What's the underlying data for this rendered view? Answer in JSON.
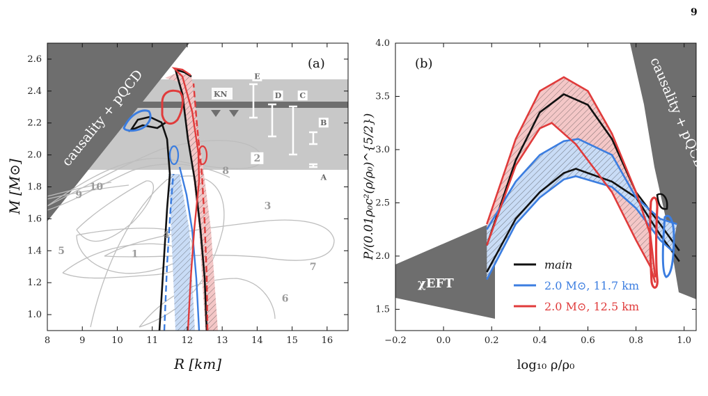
{
  "page": {
    "page_number": "9"
  },
  "chart_data": [
    {
      "type": "line",
      "panel_label": "(a)",
      "xlabel": "R [km]",
      "ylabel": "M [M⊙]",
      "xlim": [
        8,
        16.6
      ],
      "ylim": [
        0.9,
        2.7
      ],
      "xticks": [
        "8",
        "9",
        "10",
        "11",
        "12",
        "13",
        "14",
        "15",
        "16"
      ],
      "yticks": [
        "1.0",
        "1.2",
        "1.4",
        "1.6",
        "1.8",
        "2.0",
        "2.2",
        "2.4",
        "2.6"
      ],
      "shaded_region_label": "causality + pQCD",
      "mass_band": [
        1.91,
        2.47
      ],
      "kn_label": "KN",
      "kn_line_mass": 2.32,
      "measurement_labels": [
        "A",
        "B",
        "C",
        "D",
        "E"
      ],
      "measurement_bars": [
        {
          "label": "A",
          "x": 15.9,
          "ylow": 1.93,
          "yhigh": 1.95
        },
        {
          "label": "B",
          "x": 15.9,
          "ylow": 2.08,
          "yhigh": 2.15
        },
        {
          "label": "C",
          "x": 15.3,
          "ylow": 2.0,
          "yhigh": 2.32
        },
        {
          "label": "D",
          "x": 14.6,
          "ylow": 2.13,
          "yhigh": 2.32
        },
        {
          "label": "E",
          "x": 14.0,
          "ylow": 2.25,
          "yhigh": 2.44
        }
      ],
      "contour_labels": [
        "1",
        "2",
        "3",
        "4",
        "5",
        "6",
        "7",
        "8",
        "9",
        "10"
      ],
      "series": [
        {
          "name": "main",
          "color": "#111111",
          "x": [
            11.2,
            11.3,
            11.45,
            11.6,
            11.7,
            11.8,
            11.9,
            12.2,
            12.7,
            12.75,
            12.6,
            12.4,
            12.25,
            12.1,
            11.95,
            11.5,
            11.0,
            10.7,
            11.2
          ],
          "y": [
            0.9,
            1.3,
            1.6,
            1.8,
            1.95,
            2.1,
            2.2,
            2.45,
            2.5,
            2.2,
            2.0,
            1.7,
            1.4,
            1.1,
            0.9,
            2.15,
            2.28,
            2.23,
            2.25
          ]
        },
        {
          "name": "2.0 M⊙, 11.7 km",
          "color": "#3b7de0",
          "x": [
            11.3,
            11.4,
            11.55,
            11.7,
            11.9,
            11.95,
            11.85,
            11.8,
            11.95,
            12.1,
            11.6
          ],
          "y": [
            0.9,
            1.3,
            1.6,
            1.85,
            2.0,
            1.8,
            1.6,
            1.3,
            1.1,
            0.9,
            2.0
          ]
        },
        {
          "name": "2.0 M⊙, 12.5 km",
          "color": "#e03b3b",
          "x": [
            11.9,
            12.05,
            12.25,
            12.45,
            12.6,
            12.7,
            12.55,
            12.4,
            12.2,
            12.0,
            11.95
          ],
          "y": [
            0.9,
            1.3,
            1.6,
            1.85,
            2.1,
            2.5,
            2.4,
            2.0,
            1.6,
            1.2,
            2.35
          ]
        }
      ]
    },
    {
      "type": "line",
      "panel_label": "(b)",
      "xlabel": "log₁₀ ρ/ρ₀",
      "ylabel": "P/(0.01ρ₀c²(ρ/ρ₀)^{5/2})",
      "xlim": [
        -0.2,
        1.05
      ],
      "ylim": [
        1.3,
        4.0
      ],
      "xticks": [
        "−0.2",
        "0.0",
        "0.2",
        "0.4",
        "0.6",
        "0.8",
        "1.0"
      ],
      "yticks": [
        "1.5",
        "2.0",
        "2.5",
        "3.0",
        "3.5",
        "4.0"
      ],
      "shaded_region_labels": [
        "χEFT",
        "causality + pQCD"
      ],
      "legend_position": "lower-left",
      "series": [
        {
          "name": "main",
          "color": "#111111",
          "upper": {
            "x": [
              0.18,
              0.3,
              0.4,
              0.5,
              0.6,
              0.7,
              0.8,
              0.9,
              0.98
            ],
            "y": [
              2.1,
              2.9,
              3.35,
              3.52,
              3.42,
              3.1,
              2.6,
              2.3,
              2.05
            ]
          },
          "lower": {
            "x": [
              0.18,
              0.3,
              0.4,
              0.5,
              0.55,
              0.7,
              0.8,
              0.9,
              0.98
            ],
            "y": [
              1.85,
              2.35,
              2.6,
              2.78,
              2.82,
              2.7,
              2.55,
              2.2,
              1.95
            ]
          }
        },
        {
          "name": "2.0 M⊙, 11.7 km",
          "color": "#3b7de0",
          "upper": {
            "x": [
              0.18,
              0.3,
              0.4,
              0.5,
              0.56,
              0.7,
              0.8,
              0.9,
              0.97
            ],
            "y": [
              2.25,
              2.7,
              2.95,
              3.08,
              3.1,
              2.95,
              2.55,
              2.35,
              2.3
            ]
          },
          "lower": {
            "x": [
              0.18,
              0.3,
              0.4,
              0.5,
              0.55,
              0.7,
              0.8,
              0.9,
              0.95
            ],
            "y": [
              1.78,
              2.3,
              2.55,
              2.72,
              2.75,
              2.65,
              2.45,
              2.15,
              2.05
            ]
          }
        },
        {
          "name": "2.0 M⊙, 12.5 km",
          "color": "#e03b3b",
          "upper": {
            "x": [
              0.18,
              0.3,
              0.4,
              0.5,
              0.6,
              0.7,
              0.8,
              0.86,
              0.88
            ],
            "y": [
              2.3,
              3.1,
              3.55,
              3.68,
              3.55,
              3.15,
              2.6,
              2.2,
              1.8
            ]
          },
          "lower": {
            "x": [
              0.18,
              0.3,
              0.4,
              0.45,
              0.55,
              0.7,
              0.8,
              0.86,
              0.88
            ],
            "y": [
              2.1,
              2.85,
              3.2,
              3.25,
              3.05,
              2.6,
              2.15,
              1.9,
              1.75
            ]
          }
        }
      ],
      "legend": [
        "main",
        "2.0 M⊙, 11.7 km",
        "2.0 M⊙, 12.5 km"
      ]
    }
  ],
  "colors": {
    "main": "#111111",
    "blue": "#3b7de0",
    "red": "#e03b3b",
    "dark_region": "#6e6e6e",
    "band": "#c8c8c8"
  }
}
